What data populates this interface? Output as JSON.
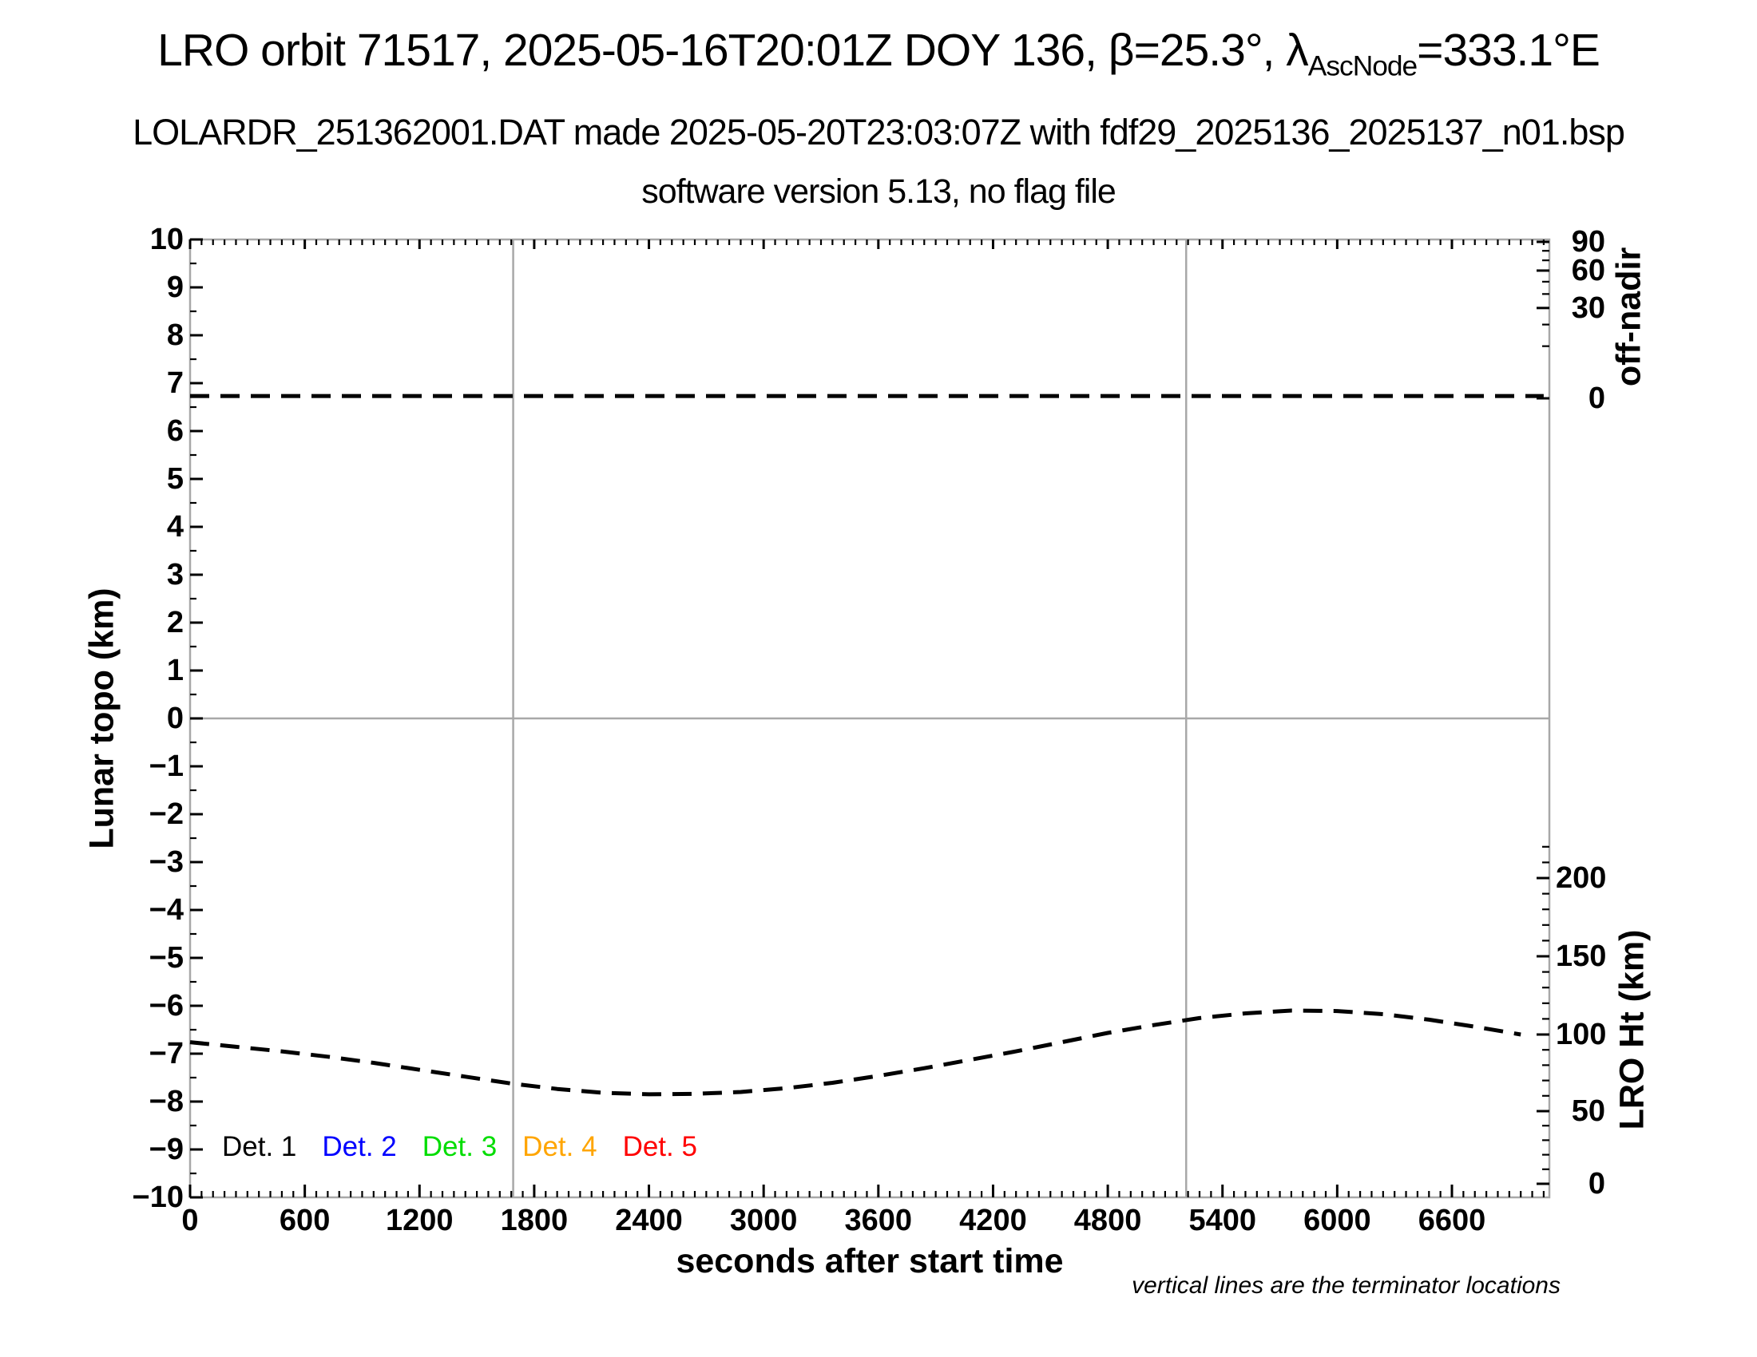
{
  "header": {
    "title_prefix": "LRO orbit 71517, 2025-05-16T20:01Z DOY 136, β=25.3°, λ",
    "title_subscript": "AscNode",
    "title_suffix": "=333.1°E",
    "subtitle1": "LOLARDR_251362001.DAT made 2025-05-20T23:03:07Z with fdf29_2025136_2025137_n01.bsp",
    "subtitle2": "software version 5.13, no flag file"
  },
  "chart_data": {
    "type": "line",
    "title": "LRO orbit 71517, 2025-05-16T20:01Z DOY 136, β=25.3°, λAscNode=333.1°E",
    "subtitle": "LOLARDR_251362001.DAT made 2025-05-20T23:03:07Z with fdf29_2025136_2025137_n01.bsp",
    "subtitle2": "software version 5.13, no flag file",
    "xlabel": "seconds after start time",
    "x_axis": {
      "range": [
        0,
        7106
      ],
      "major_tick_interval": 600,
      "minor_tick_interval": 60,
      "major_tick_values": [
        0,
        600,
        1200,
        1800,
        2400,
        3000,
        3600,
        4200,
        4800,
        5400,
        6000,
        6600
      ]
    },
    "y_left_axis": {
      "label": "Lunar topo (km)",
      "range": [
        -10,
        10
      ],
      "major_tick_interval": 1,
      "minor_tick_interval": 0.5,
      "major_tick_values": [
        10,
        9,
        8,
        7,
        6,
        5,
        4,
        3,
        2,
        1,
        0,
        -1,
        -2,
        -3,
        -4,
        -5,
        -6,
        -7,
        -8,
        -9,
        -10
      ]
    },
    "y_right_top_axis": {
      "label": "off-nadir",
      "scale": "sqrt",
      "range": [
        0,
        90
      ],
      "major_tick_values": [
        90,
        60,
        30,
        0
      ],
      "minor_tick_values": [
        80,
        70,
        50,
        40,
        20,
        10
      ]
    },
    "y_right_bottom_axis": {
      "label": "LRO Ht (km)",
      "range": [
        0,
        220
      ],
      "major_tick_values": [
        200,
        150,
        100,
        50,
        0
      ],
      "minor_tick_interval": 10
    },
    "series": [
      {
        "name": "spacecraft off-nadir angle",
        "axis": "off-nadir",
        "style": "dashed",
        "color": "#000000",
        "x": [
          0,
          7080
        ],
        "y": [
          0.02,
          0.02
        ]
      },
      {
        "name": "LRO height above surface",
        "axis": "lro-ht",
        "style": "dashed",
        "color": "#000000",
        "x": [
          0,
          240,
          480,
          720,
          960,
          1200,
          1440,
          1680,
          1920,
          2160,
          2400,
          2640,
          2880,
          3120,
          3360,
          3600,
          3840,
          4080,
          4320,
          4560,
          4800,
          5040,
          5280,
          5520,
          5760,
          6000,
          6240,
          6480,
          6720,
          6960
        ],
        "y": [
          95,
          92,
          89,
          85.5,
          81.5,
          77,
          72.5,
          68,
          64.5,
          62,
          61,
          61.3,
          62.5,
          65,
          68.5,
          73,
          78,
          83.5,
          89,
          95,
          101,
          106,
          110.5,
          113.5,
          115.3,
          115,
          113,
          109.5,
          105,
          100
        ]
      }
    ],
    "terminator_lines_x": [
      1690,
      5210
    ],
    "legend": [
      {
        "label": "Det. 1",
        "color": "#000000"
      },
      {
        "label": "Det. 2",
        "color": "#0000ff"
      },
      {
        "label": "Det. 3",
        "color": "#00dd00"
      },
      {
        "label": "Det. 4",
        "color": "#ffa500"
      },
      {
        "label": "Det. 5",
        "color": "#ff0000"
      }
    ],
    "footnote": "vertical lines are the terminator locations",
    "grid": {
      "zero_line": true,
      "frame_color": "#a8a8a8"
    }
  }
}
